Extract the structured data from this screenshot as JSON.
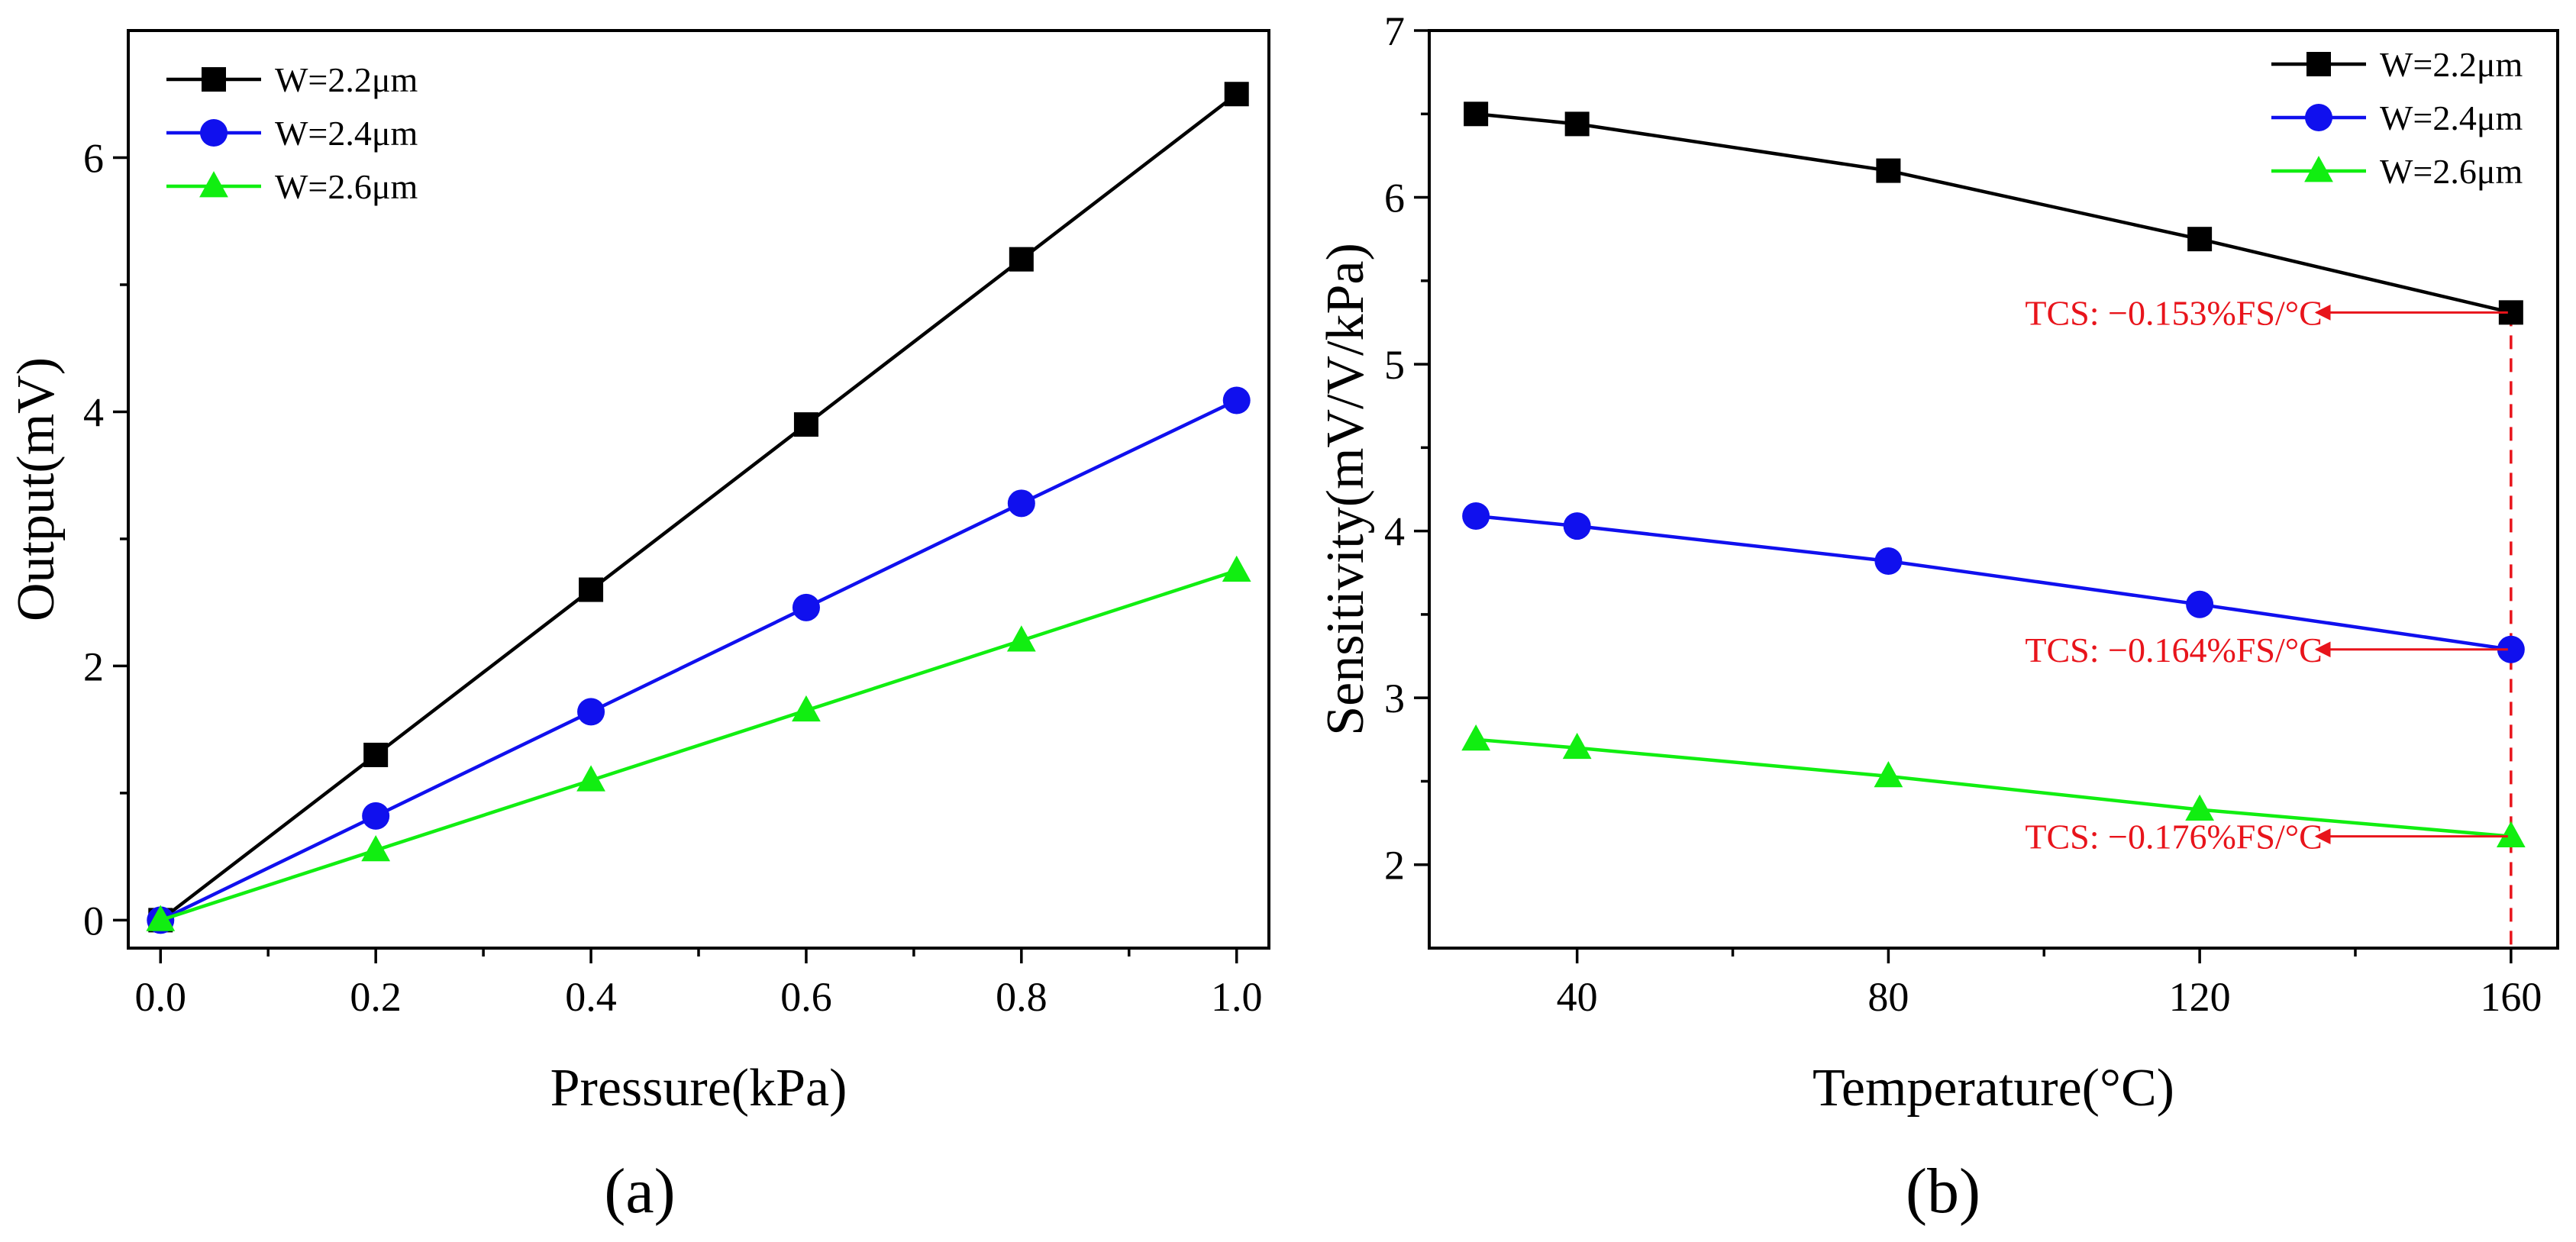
{
  "chart_data": [
    {
      "type": "line",
      "panel_label": "(a)",
      "xlabel": "Pressure(kPa)",
      "ylabel": "Output(mV)",
      "xlim": [
        -0.03,
        1.03
      ],
      "ylim": [
        -0.22,
        7.0
      ],
      "xticks": [
        0.0,
        0.2,
        0.4,
        0.6,
        0.8,
        1.0
      ],
      "xtick_labels": [
        "0.0",
        "0.2",
        "0.4",
        "0.6",
        "0.8",
        "1.0"
      ],
      "yticks": [
        0,
        2,
        4,
        6
      ],
      "ytick_labels": [
        "0",
        "2",
        "4",
        "6"
      ],
      "legend_position": "top-left",
      "x": [
        0.0,
        0.2,
        0.4,
        0.6,
        0.8,
        1.0
      ],
      "series": [
        {
          "name": "W=2.2μm",
          "color": "#000000",
          "marker": "square",
          "values": [
            0.0,
            1.3,
            2.6,
            3.9,
            5.2,
            6.5
          ]
        },
        {
          "name": "W=2.4μm",
          "color": "#1010ee",
          "marker": "circle",
          "values": [
            0.0,
            0.82,
            1.64,
            2.46,
            3.28,
            4.09
          ]
        },
        {
          "name": "W=2.6μm",
          "color": "#11ee11",
          "marker": "triangle",
          "values": [
            0.0,
            0.55,
            1.1,
            1.65,
            2.2,
            2.75
          ]
        }
      ]
    },
    {
      "type": "line",
      "panel_label": "(b)",
      "xlabel": "Temperature(°C)",
      "ylabel": "Sensitivity(mV/V/kPa)",
      "xlim": [
        21,
        166
      ],
      "ylim": [
        1.5,
        7.0
      ],
      "xticks": [
        40,
        80,
        120,
        160
      ],
      "xtick_labels": [
        "40",
        "80",
        "120",
        "160"
      ],
      "yticks": [
        2,
        3,
        4,
        5,
        6,
        7
      ],
      "ytick_labels": [
        "2",
        "3",
        "4",
        "5",
        "6",
        "7"
      ],
      "legend_position": "top-right",
      "x": [
        27,
        40,
        80,
        120,
        160
      ],
      "series": [
        {
          "name": "W=2.2μm",
          "color": "#000000",
          "marker": "square",
          "values": [
            6.5,
            6.44,
            6.16,
            5.75,
            5.31
          ]
        },
        {
          "name": "W=2.4μm",
          "color": "#1010ee",
          "marker": "circle",
          "values": [
            4.09,
            4.03,
            3.82,
            3.56,
            3.29
          ]
        },
        {
          "name": "W=2.6μm",
          "color": "#11ee11",
          "marker": "triangle",
          "values": [
            2.75,
            2.7,
            2.53,
            2.33,
            2.17
          ]
        }
      ],
      "annotations": [
        {
          "text": "TCS: −0.153%FS/°C",
          "color": "#e8141b",
          "x": 160,
          "y": 5.31
        },
        {
          "text": "TCS: −0.164%FS/°C",
          "color": "#e8141b",
          "x": 160,
          "y": 3.29
        },
        {
          "text": "TCS: −0.176%FS/°C",
          "color": "#e8141b",
          "x": 160,
          "y": 2.17
        }
      ],
      "reference_line": {
        "x": 160,
        "from_y": 5.31,
        "to_y": 1.5,
        "color": "#e8141b",
        "style": "dashed"
      }
    }
  ]
}
